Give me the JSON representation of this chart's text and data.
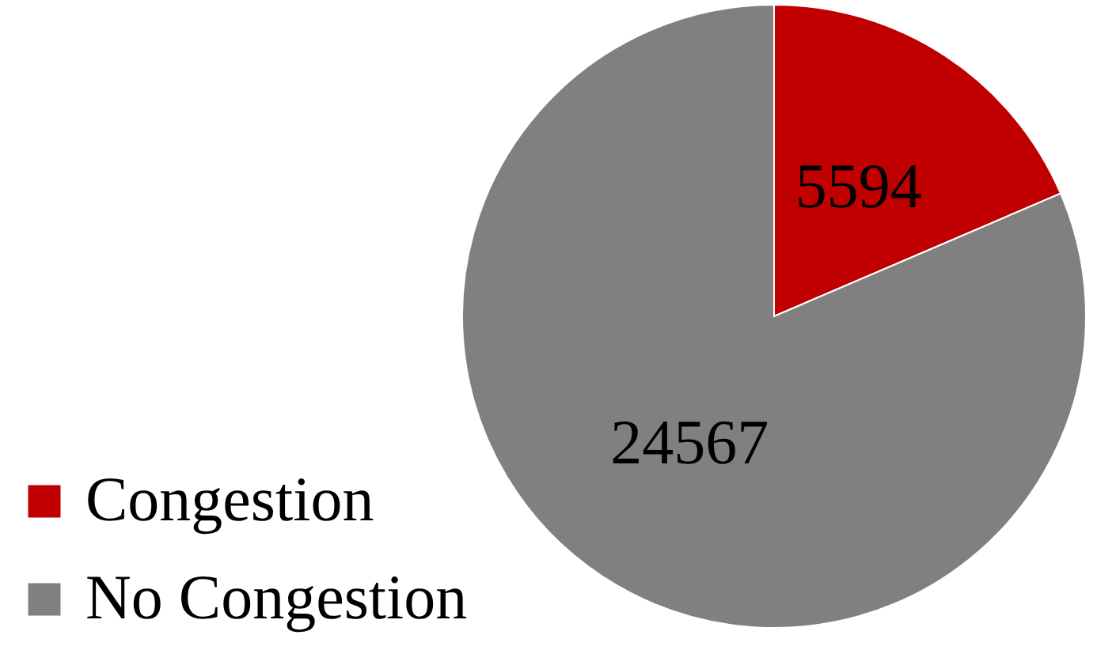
{
  "chart_data": {
    "type": "pie",
    "categories": [
      "Congestion",
      "No Congestion"
    ],
    "values": [
      5594,
      24567
    ],
    "colors": [
      "#c00000",
      "#808080"
    ],
    "data_labels": true,
    "legend": "bottom left"
  }
}
